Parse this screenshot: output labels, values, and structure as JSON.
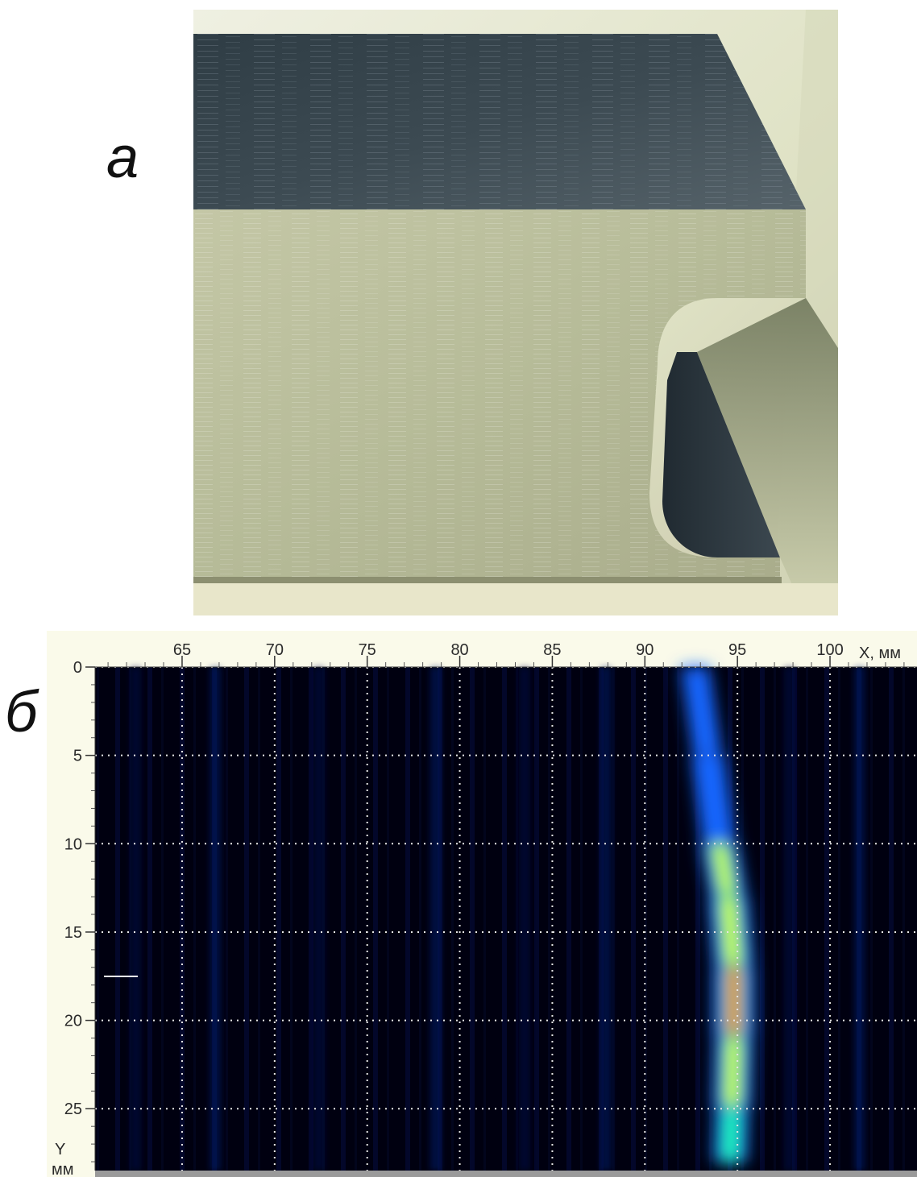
{
  "panels": {
    "a": {
      "label": "a"
    },
    "b": {
      "label": "б"
    }
  },
  "chart_data": {
    "type": "heatmap",
    "title": "",
    "xlabel": "X, мм",
    "ylabel_line1": "Y",
    "ylabel_line2": "мм",
    "x_ticks": [
      65,
      70,
      75,
      80,
      85,
      90,
      95,
      100
    ],
    "y_ticks": [
      0,
      5,
      10,
      15,
      20,
      25
    ],
    "xlim": [
      60.3,
      104.7
    ],
    "ylim": [
      0,
      28.5
    ],
    "grid": true,
    "colormap": [
      "#000010",
      "#0a1e7a",
      "#1466ff",
      "#22ffaa",
      "#e6ff22",
      "#ff2a10"
    ],
    "hotspot": {
      "y_points": [
        0,
        5,
        10,
        13,
        17,
        21,
        25,
        28
      ],
      "x_center": [
        92.7,
        93.4,
        94.0,
        94.5,
        94.8,
        94.8,
        94.7,
        94.6
      ],
      "intensity": [
        0.25,
        0.4,
        0.65,
        0.85,
        1.0,
        0.95,
        0.72,
        0.45
      ]
    }
  }
}
